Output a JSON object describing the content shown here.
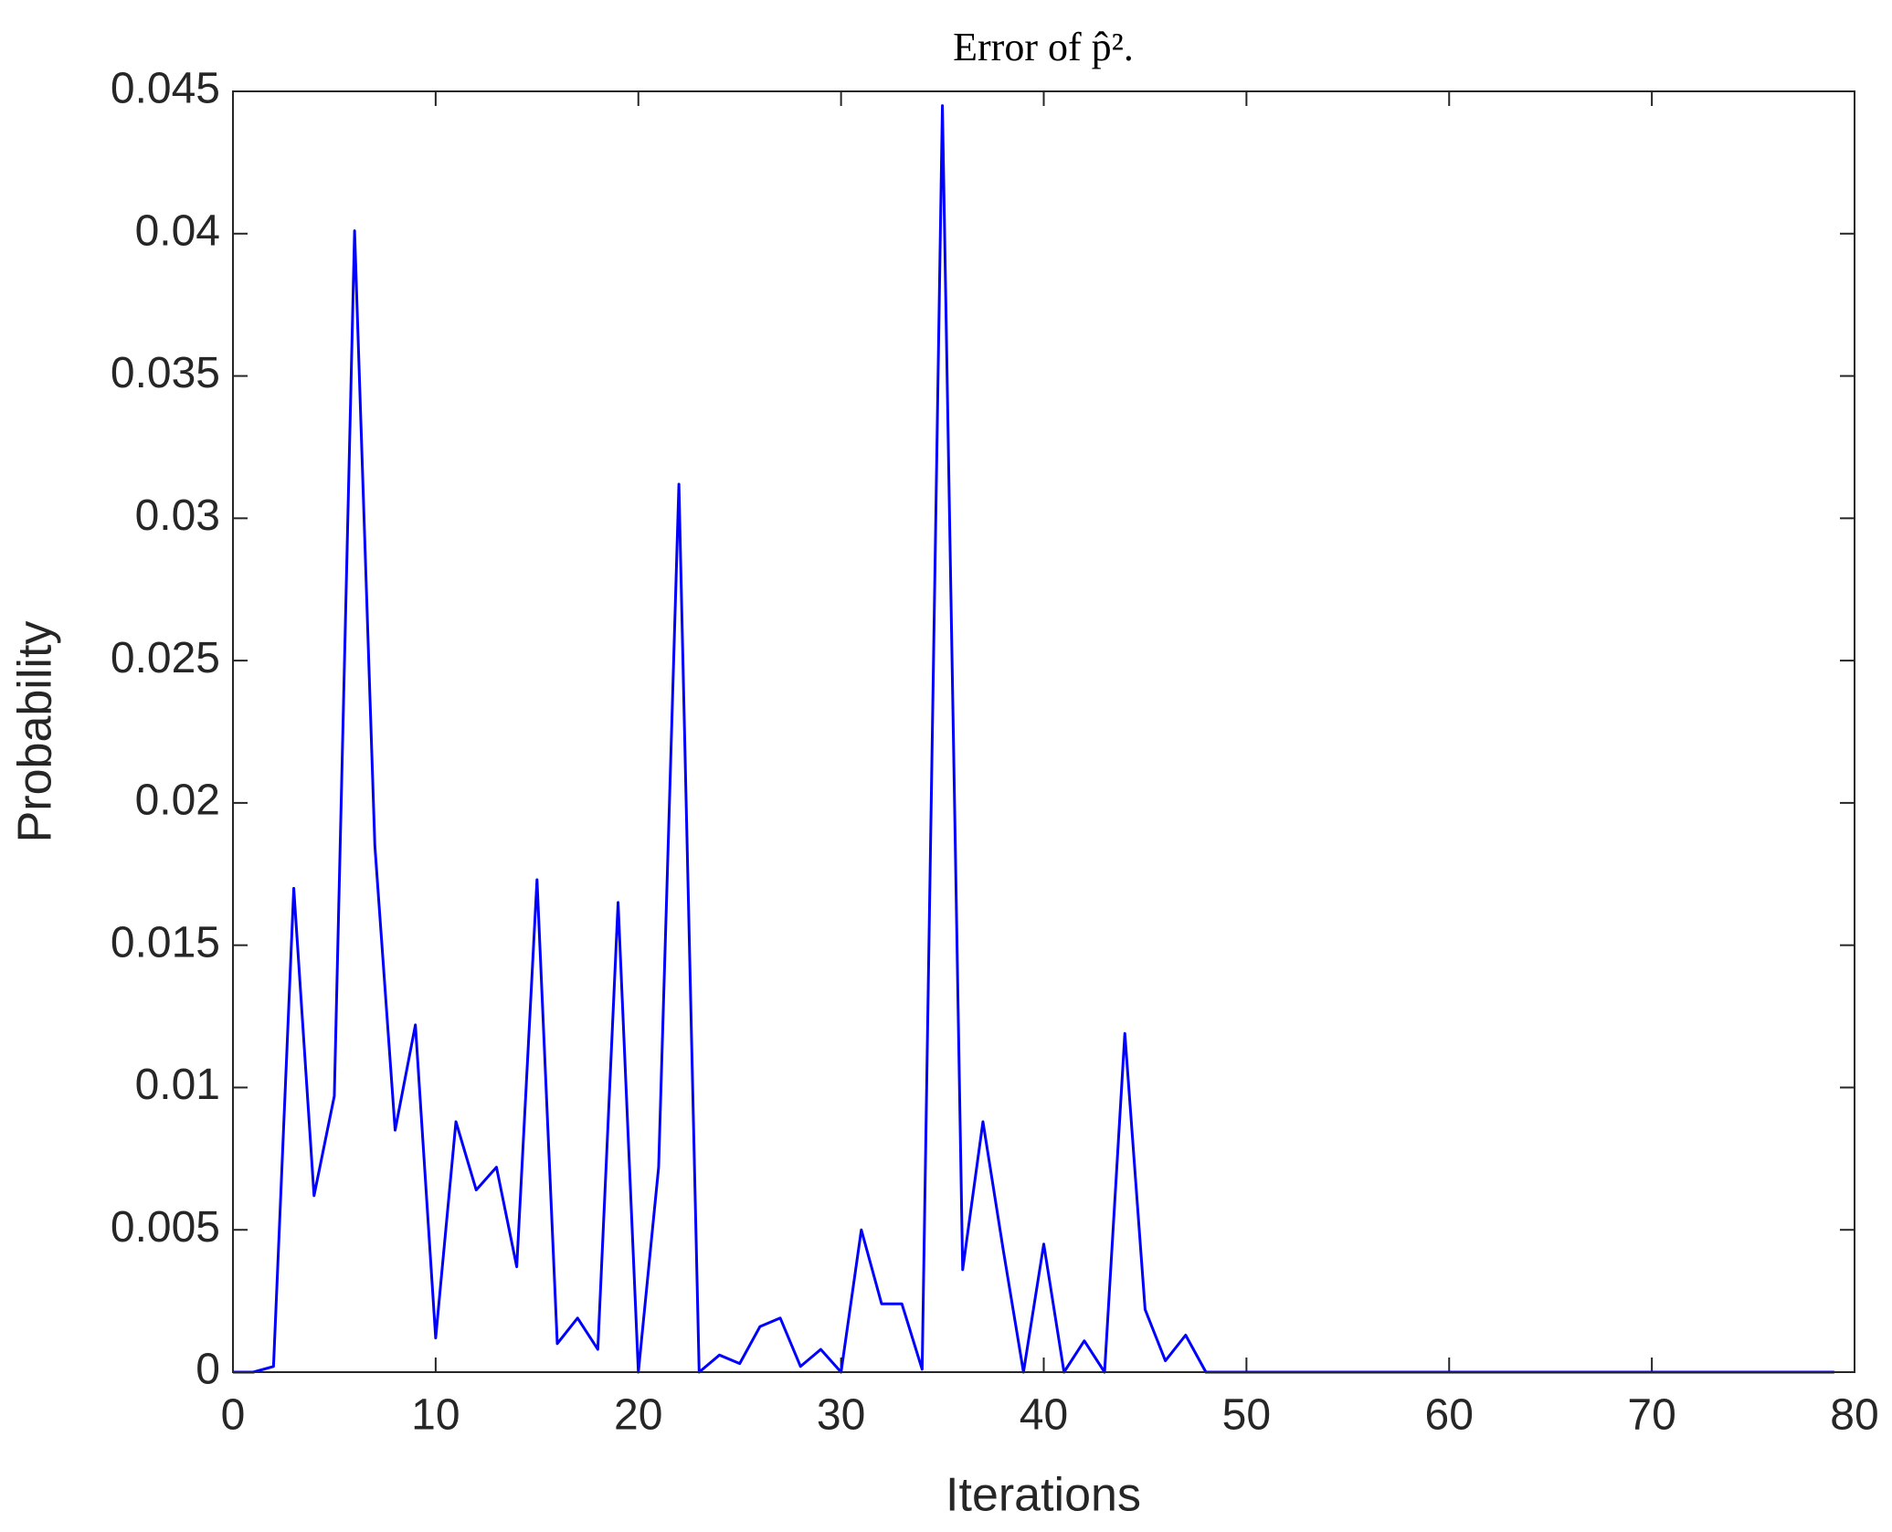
{
  "chart_data": {
    "type": "line",
    "title": "Error of p̂².",
    "xlabel": "Iterations",
    "ylabel": "Probability",
    "x": [
      0,
      1,
      2,
      3,
      4,
      5,
      6,
      7,
      8,
      9,
      10,
      11,
      12,
      13,
      14,
      15,
      16,
      17,
      18,
      19,
      20,
      21,
      22,
      23,
      24,
      25,
      26,
      27,
      28,
      29,
      30,
      31,
      32,
      33,
      34,
      35,
      36,
      37,
      38,
      39,
      40,
      41,
      42,
      43,
      44,
      45,
      46,
      47,
      48,
      49,
      50,
      51,
      52,
      53,
      54,
      55,
      56,
      57,
      58,
      59,
      60,
      61,
      62,
      63,
      64,
      65,
      66,
      67,
      68,
      69,
      70,
      71,
      72,
      73,
      74,
      75,
      76,
      77,
      78,
      79
    ],
    "series": [
      {
        "name": "Error",
        "color": "#0000ff",
        "values": [
          0,
          0,
          0.0002,
          0.017,
          0.0062,
          0.0097,
          0.0401,
          0.0185,
          0.0085,
          0.0122,
          0.0012,
          0.0088,
          0.0064,
          0.0072,
          0.0037,
          0.0173,
          0.001,
          0.0019,
          0.0008,
          0.0165,
          0,
          0.0072,
          0.0312,
          0,
          0.0006,
          0.0003,
          0.0016,
          0.0019,
          0.0002,
          0.0008,
          0,
          0.005,
          0.0024,
          0.0024,
          0.0001,
          0.0445,
          0.0036,
          0.0088,
          0.0043,
          0,
          0.0045,
          0,
          0.0011,
          0,
          0.0119,
          0.0022,
          0.0004,
          0.0013,
          0,
          0,
          0,
          0,
          0,
          0,
          0,
          0,
          0,
          0,
          0,
          0,
          0,
          0,
          0,
          0,
          0,
          0,
          0,
          0,
          0,
          0,
          0,
          0,
          0,
          0,
          0,
          0,
          0,
          0,
          0,
          0
        ]
      }
    ],
    "xlim": [
      0,
      80
    ],
    "xticks": [
      0,
      10,
      20,
      30,
      40,
      50,
      60,
      70,
      80
    ],
    "ylim": [
      0,
      0.045
    ],
    "yticks": [
      0,
      0.005,
      0.01,
      0.015,
      0.02,
      0.025,
      0.03,
      0.035,
      0.04,
      0.045
    ],
    "grid": false
  }
}
